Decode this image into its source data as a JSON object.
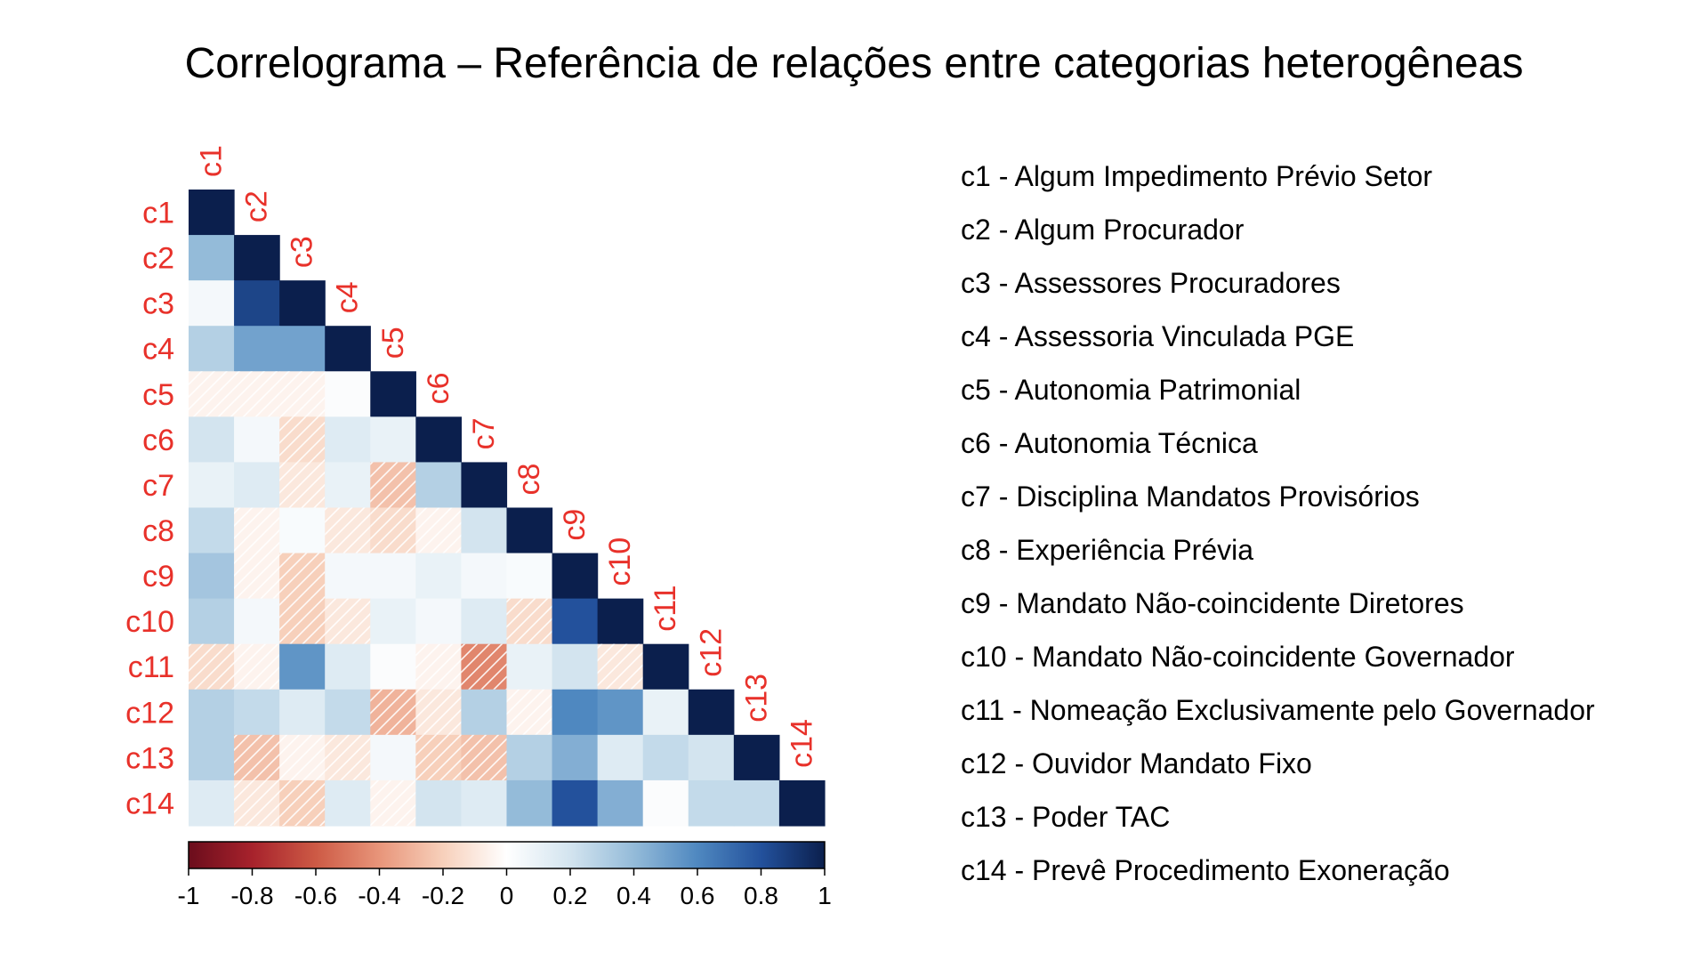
{
  "title": "Correlograma – Referência de relações entre categorias heterogêneas",
  "legend_items": [
    "c1 - Algum Impedimento Prévio Setor",
    "c2 - Algum Procurador",
    "c3 - Assessores Procuradores",
    "c4 - Assessoria Vinculada PGE",
    "c5 - Autonomia Patrimonial",
    "c6 - Autonomia Técnica",
    "c7 - Disciplina Mandatos Provisórios",
    "c8 - Experiência Prévia",
    "c9 - Mandato Não-coincidente Diretores",
    "c10 - Mandato Não-coincidente Governador",
    "c11 - Nomeação Exclusivamente pelo Governador",
    "c12 - Ouvidor Mandato Fixo",
    "c13 - Poder TAC",
    "c14 - Prevê Procedimento Exoneração"
  ],
  "colors": {
    "label": "#e8312a",
    "diagonal": "#0b1f4d",
    "positive_end": "#0b1f4d",
    "negative_end": "#6b0d1c"
  },
  "chart_data": {
    "type": "heatmap",
    "subtype": "lower-triangle correlogram",
    "variables": [
      "c1",
      "c2",
      "c3",
      "c4",
      "c5",
      "c6",
      "c7",
      "c8",
      "c9",
      "c10",
      "c11",
      "c12",
      "c13",
      "c14"
    ],
    "matrix": [
      [
        1.0
      ],
      [
        0.4,
        1.0
      ],
      [
        0.05,
        0.85,
        1.0
      ],
      [
        0.3,
        0.5,
        0.5,
        1.0
      ],
      [
        -0.05,
        -0.05,
        -0.05,
        0.02,
        1.0
      ],
      [
        0.2,
        0.05,
        -0.15,
        0.15,
        0.1,
        1.0
      ],
      [
        0.1,
        0.15,
        -0.1,
        0.1,
        -0.25,
        0.3,
        1.0
      ],
      [
        0.25,
        -0.05,
        0.03,
        -0.1,
        -0.15,
        -0.05,
        0.2,
        1.0
      ],
      [
        0.35,
        -0.05,
        -0.2,
        0.05,
        0.05,
        0.1,
        0.05,
        0.03,
        1.0
      ],
      [
        0.3,
        0.05,
        -0.2,
        -0.1,
        0.1,
        0.05,
        0.15,
        -0.15,
        0.8,
        1.0
      ],
      [
        -0.15,
        -0.05,
        0.55,
        0.15,
        0.02,
        -0.05,
        -0.45,
        0.1,
        0.2,
        -0.1,
        1.0
      ],
      [
        0.3,
        0.25,
        0.15,
        0.25,
        -0.3,
        -0.1,
        0.3,
        -0.05,
        0.6,
        0.55,
        0.1,
        1.0
      ],
      [
        0.3,
        -0.25,
        -0.05,
        -0.1,
        0.05,
        -0.2,
        -0.25,
        0.3,
        0.45,
        0.15,
        0.25,
        0.2,
        1.0
      ],
      [
        0.15,
        -0.1,
        -0.2,
        0.15,
        -0.05,
        0.2,
        0.15,
        0.4,
        0.8,
        0.45,
        0.02,
        0.25,
        0.25,
        1.0
      ]
    ],
    "colorbar": {
      "range": [
        -1,
        1
      ],
      "ticks": [
        "-1",
        "-0.8",
        "-0.6",
        "-0.4",
        "-0.2",
        "0",
        "0.2",
        "0.4",
        "0.6",
        "0.8",
        "1"
      ]
    },
    "negative_hatch": true
  }
}
